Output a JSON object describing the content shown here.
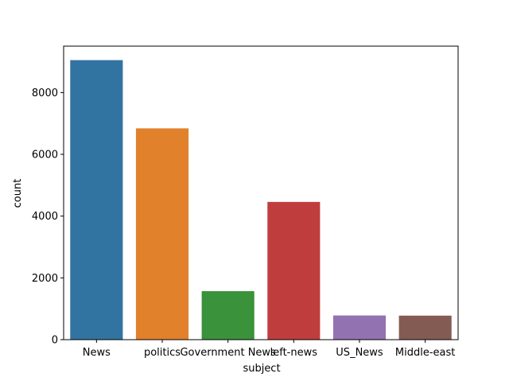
{
  "chart_data": {
    "type": "bar",
    "title": "",
    "xlabel": "subject",
    "ylabel": "count",
    "categories": [
      "News",
      "politics",
      "Government News",
      "left-news",
      "US_News",
      "Middle-east"
    ],
    "values": [
      9050,
      6841,
      1570,
      4459,
      783,
      778
    ],
    "colors": [
      "#3274a1",
      "#e1812c",
      "#3a923a",
      "#c03d3e",
      "#9372b2",
      "#845b53"
    ],
    "yticks": [
      0,
      2000,
      4000,
      6000,
      8000
    ],
    "ylim": [
      0,
      9503
    ],
    "grid": false,
    "legend": "none"
  }
}
